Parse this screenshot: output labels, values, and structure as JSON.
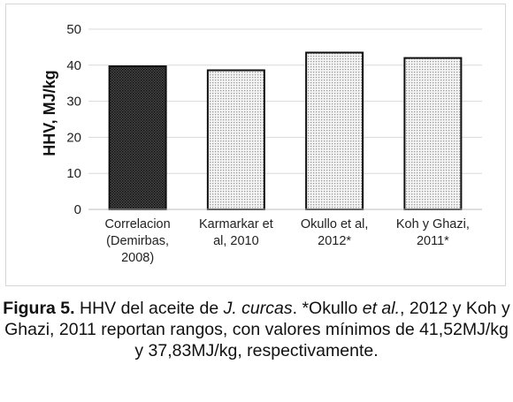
{
  "chart_data": {
    "type": "bar",
    "categories": [
      [
        "Correlacion",
        "(Demirbas,",
        "2008)"
      ],
      [
        "Karmarkar et",
        "al, 2010"
      ],
      [
        "Okullo et al,",
        "2012*"
      ],
      [
        "Koh y Ghazi,",
        "2011*"
      ]
    ],
    "values": [
      39.7,
      38.6,
      43.5,
      42.0
    ],
    "ylabel": "HHV, MJ/kg",
    "ylim": [
      0,
      50
    ],
    "yticks": [
      0,
      10,
      20,
      30,
      40,
      50
    ],
    "grid": true,
    "legend": "none",
    "fill_patterns": [
      "dense-dark",
      "light-dots",
      "light-dots",
      "light-dots"
    ]
  },
  "caption": {
    "label": "Figura 5.",
    "t1": " HHV del aceite de ",
    "species": "J. curcas",
    "t2": ". *Okullo ",
    "etal1": "et al.",
    "t3": ", 2012 y Koh y Ghazi, 2011 reportan rangos, con valores mínimos de 41,52MJ/kg y 37,83MJ/kg, respectivamente."
  }
}
